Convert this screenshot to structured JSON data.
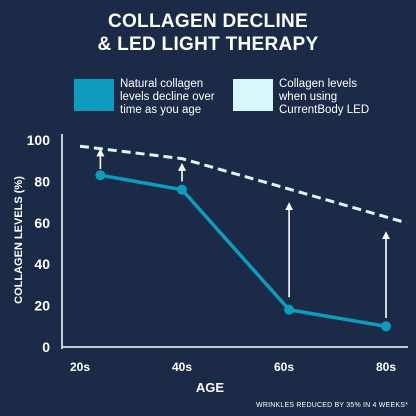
{
  "title_line1": "COLLAGEN DECLINE",
  "title_line2": "& LED LIGHT THERAPY",
  "legend": [
    {
      "text_lines": [
        "Natural collagen",
        "levels decline over",
        "time as you age"
      ],
      "color": "#0e9cbe"
    },
    {
      "text_lines": [
        "Collagen levels",
        "when using",
        "CurrentBody LED"
      ],
      "color": "#d9f7fa"
    }
  ],
  "footnote": "WRINKLES REDUCED BY 35% IN 4 WEEKS*",
  "chart_data": {
    "type": "line",
    "xlabel": "AGE",
    "ylabel": "COLLAGEN LEVELS (%)",
    "categories": [
      "20s",
      "40s",
      "60s",
      "80s"
    ],
    "ylim": [
      0,
      100
    ],
    "yticks": [
      "0",
      "20",
      "40",
      "60",
      "80",
      "100"
    ],
    "grid": false,
    "legend_position": "top",
    "series": [
      {
        "name": "Natural collagen levels decline over time as you age",
        "style": "solid",
        "color": "#0e9cbe",
        "markers": true,
        "x": [
          0.2,
          1.0,
          2.05,
          3.0
        ],
        "y": [
          83,
          76,
          18,
          10
        ]
      },
      {
        "name": "Collagen levels when using CurrentBody LED",
        "style": "dashed",
        "color": "#d9f7fa",
        "markers": false,
        "x": [
          0.0,
          1.0,
          2.0,
          3.2
        ],
        "y": [
          97,
          91,
          77,
          60
        ]
      }
    ],
    "annotations": [
      {
        "type": "arrow",
        "x": 0.2,
        "from": 86,
        "to": 94
      },
      {
        "type": "arrow",
        "x": 1.0,
        "from": 80,
        "to": 87
      },
      {
        "type": "arrow",
        "x": 2.05,
        "from": 24,
        "to": 68
      },
      {
        "type": "arrow",
        "x": 3.0,
        "from": 14,
        "to": 54
      }
    ]
  }
}
